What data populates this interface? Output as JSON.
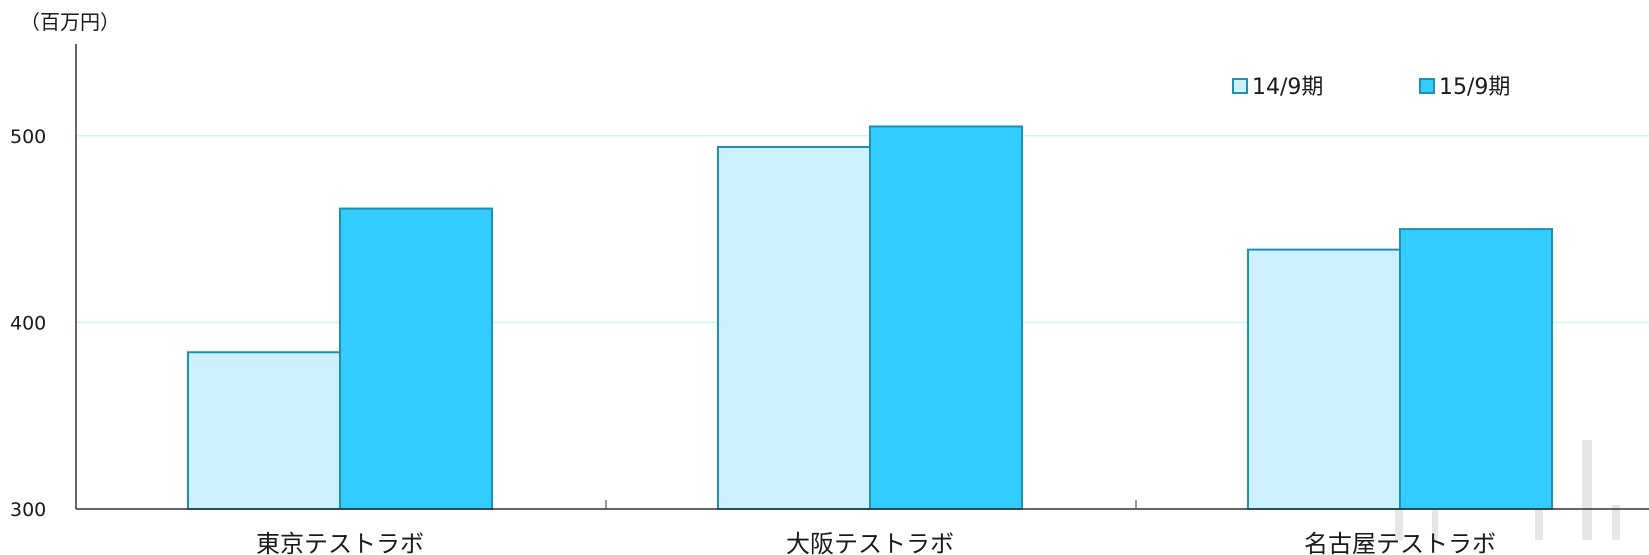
{
  "chart_data": {
    "type": "bar",
    "unit_label": "（百万円）",
    "categories": [
      "東京テストラボ",
      "大阪テストラボ",
      "名古屋テストラボ"
    ],
    "series": [
      {
        "name": "14/9期",
        "values": [
          384,
          494,
          439
        ]
      },
      {
        "name": "15/9期",
        "values": [
          461,
          505,
          450
        ]
      }
    ],
    "yticks": [
      "300",
      "400",
      "500"
    ],
    "ylim": [
      300,
      550
    ],
    "grid": true,
    "legend_position": "top-right",
    "colors": {
      "series_fills": [
        "#ccf0fc",
        "#33ccff"
      ],
      "bar_stroke": "#1f8fb3",
      "grid": "#ccf4fb",
      "axis": "#333333"
    }
  }
}
